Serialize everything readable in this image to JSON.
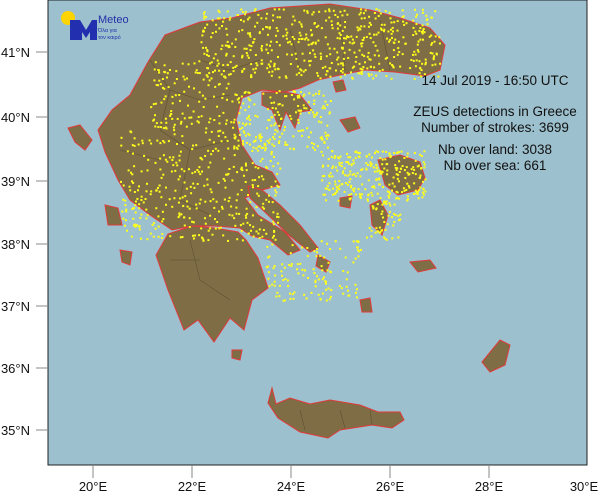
{
  "logo": {
    "brand": "Meteo",
    "tagline_line1": "Όλα για",
    "tagline_line2": "τον καιρό"
  },
  "info": {
    "datetime": "14  Jul 2019 - 16:50 UTC",
    "title": "ZEUS detections in Greece",
    "strokes": "Number of strokes: 3699",
    "over_land": "Nb over land: 3038",
    "over_sea": "Nb over sea: 661"
  },
  "axes": {
    "lon_labels": [
      "20°E",
      "22°E",
      "24°E",
      "26°E",
      "28°E",
      "30°E"
    ],
    "lat_labels": [
      "41°N",
      "40°N",
      "39°N",
      "38°N",
      "37°N",
      "36°N",
      "35°N"
    ],
    "lon_range": [
      19,
      30
    ],
    "lat_range": [
      34.4,
      41.8
    ]
  },
  "colors": {
    "sea": "#9cc0cd",
    "land": "#7f6d45",
    "border": "#e03a3a",
    "admin": "#5e5133",
    "strike": "#ffff1a",
    "logo_blue": "#2230b0",
    "logo_sun": "#ffd400"
  }
}
